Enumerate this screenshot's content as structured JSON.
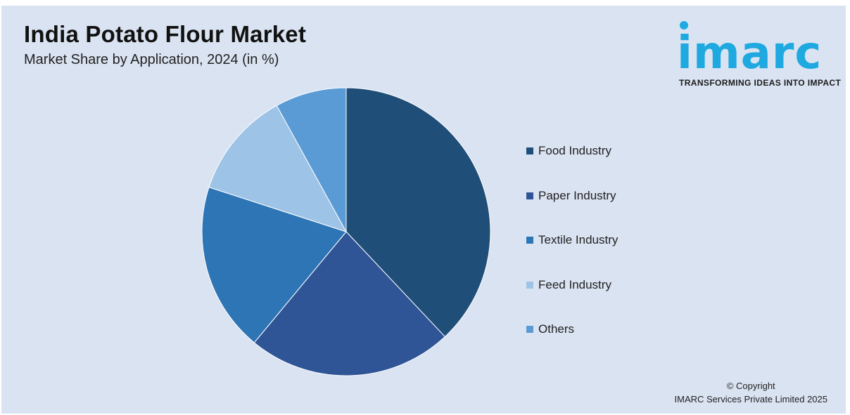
{
  "header": {
    "title": "India Potato Flour Market",
    "subtitle": "Market Share by Application, 2024 (in %)"
  },
  "logo": {
    "wordmark": "imarc",
    "tagline": "TRANSFORMING IDEAS INTO IMPACT",
    "color": "#1ea9e0"
  },
  "footer": {
    "copyright_line1": "© Copyright",
    "copyright_line2": "IMARC Services Private Limited 2025"
  },
  "chart_data": {
    "type": "pie",
    "title": "India Potato Flour Market",
    "subtitle": "Market Share by Application, 2024 (in %)",
    "legend_position": "right",
    "start_angle_deg": 0,
    "direction": "clockwise",
    "slices": [
      {
        "label": "Food Industry",
        "value": 38,
        "color": "#1f4e79"
      },
      {
        "label": "Paper Industry",
        "value": 23,
        "color": "#2f5597"
      },
      {
        "label": "Textile Industry",
        "value": 19,
        "color": "#2e75b6"
      },
      {
        "label": "Feed Industry",
        "value": 12,
        "color": "#9dc3e6"
      },
      {
        "label": "Others",
        "value": 8,
        "color": "#5b9bd5"
      }
    ]
  }
}
